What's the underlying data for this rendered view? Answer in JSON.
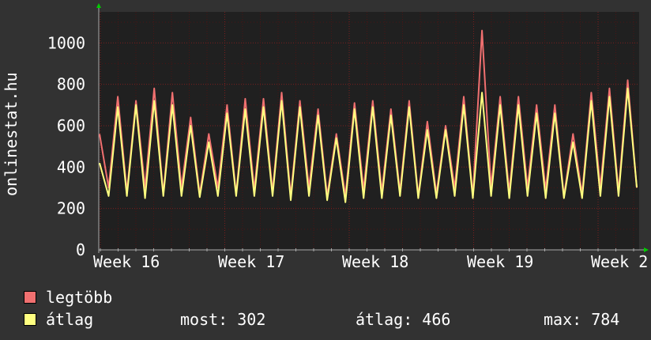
{
  "chart_data": {
    "type": "line",
    "ylabel": "onlinestat.hu",
    "y_ticks": [
      "0",
      "200",
      "400",
      "600",
      "800",
      "1000"
    ],
    "ylim": [
      0,
      1150
    ],
    "x_ticks": [
      "Week 16",
      "Week 17",
      "Week 18",
      "Week 19",
      "Week 2"
    ],
    "grid": true,
    "colors": {
      "background": "#323232",
      "plot": "#202020",
      "grid": "#7a1f1f",
      "axis": "#aaaaaa",
      "arrow": "#00cc00"
    },
    "series": [
      {
        "name": "legtöbb",
        "color": "#f07070",
        "values": [
          560,
          300,
          740,
          280,
          720,
          300,
          780,
          270,
          760,
          300,
          640,
          270,
          560,
          300,
          700,
          270,
          730,
          290,
          730,
          280,
          760,
          260,
          720,
          300,
          680,
          260,
          560,
          260,
          710,
          290,
          720,
          280,
          680,
          280,
          720,
          260,
          620,
          270,
          600,
          300,
          740,
          260,
          1060,
          300,
          740,
          280,
          740,
          300,
          700,
          290,
          700,
          260,
          560,
          270,
          760,
          300,
          780,
          280,
          820,
          300
        ]
      },
      {
        "name": "átlag",
        "color": "#ffff80",
        "values": [
          420,
          260,
          690,
          260,
          700,
          250,
          720,
          260,
          700,
          260,
          600,
          255,
          520,
          260,
          660,
          260,
          680,
          260,
          690,
          260,
          720,
          240,
          690,
          260,
          650,
          240,
          540,
          230,
          680,
          250,
          690,
          250,
          650,
          260,
          690,
          250,
          580,
          250,
          580,
          260,
          700,
          250,
          760,
          260,
          700,
          250,
          700,
          260,
          660,
          250,
          660,
          250,
          520,
          250,
          720,
          260,
          740,
          260,
          780,
          302
        ]
      }
    ]
  },
  "legend": {
    "max_label": "legtöbb",
    "avg_label": "átlag",
    "stats": {
      "now": "most: 302",
      "avg": "átlag: 466",
      "max": "max: 784"
    }
  }
}
